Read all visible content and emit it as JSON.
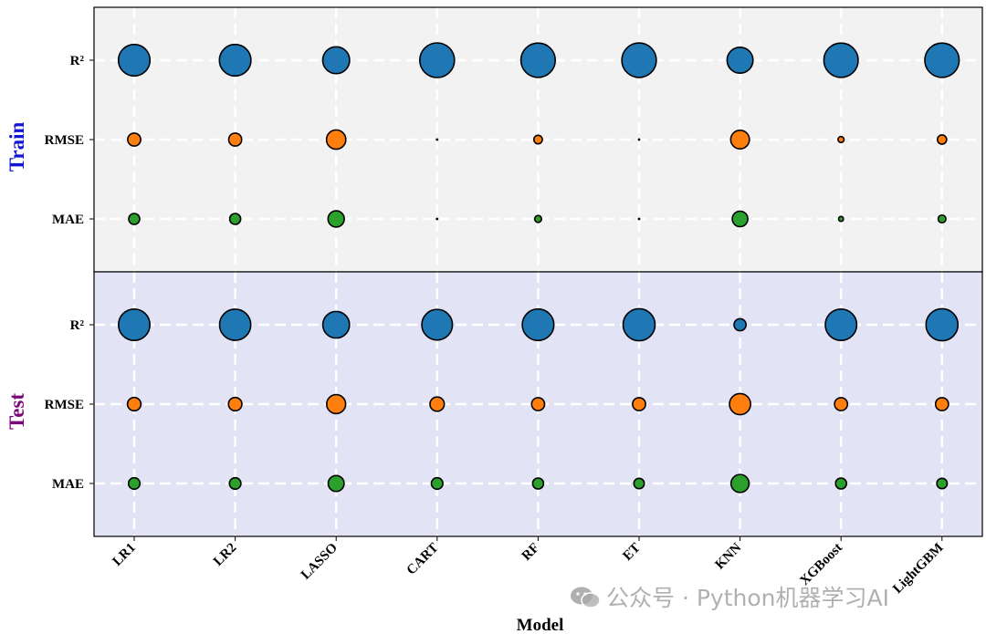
{
  "chart_data": {
    "type": "scatter",
    "subtype": "bubble-matrix",
    "xlabel": "Model",
    "categories": [
      "LR1",
      "LR2",
      "LASSO",
      "CART",
      "RF",
      "ET",
      "KNN",
      "XGBoost",
      "LightGBM"
    ],
    "metrics": [
      "R²",
      "RMSE",
      "MAE"
    ],
    "metric_colors": {
      "R²": "#1f77b4",
      "RMSE": "#ff7f0e",
      "MAE": "#2ca02c"
    },
    "panels": [
      {
        "name": "Train",
        "label_color": "#1414d2",
        "background": "#f2f2f2",
        "values": {
          "R²": [
            0.83,
            0.83,
            0.6,
            1.0,
            0.98,
            0.99,
            0.56,
            0.98,
            0.98
          ],
          "RMSE": [
            0.14,
            0.14,
            0.31,
            0.0,
            0.06,
            0.0,
            0.29,
            0.03,
            0.07
          ],
          "MAE": [
            0.1,
            0.1,
            0.22,
            0.0,
            0.04,
            0.0,
            0.2,
            0.02,
            0.05
          ]
        }
      },
      {
        "name": "Test",
        "label_color": "#7a067a",
        "background": "#e3e3f6",
        "values": {
          "R²": [
            0.82,
            0.81,
            0.59,
            0.78,
            0.83,
            0.85,
            0.12,
            0.82,
            0.85
          ],
          "RMSE": [
            0.15,
            0.15,
            0.3,
            0.17,
            0.14,
            0.14,
            0.37,
            0.14,
            0.14
          ],
          "MAE": [
            0.11,
            0.11,
            0.21,
            0.11,
            0.1,
            0.09,
            0.27,
            0.1,
            0.09
          ]
        }
      }
    ],
    "grid": true
  },
  "watermark": {
    "text": "公众号 · Python机器学习AI"
  }
}
